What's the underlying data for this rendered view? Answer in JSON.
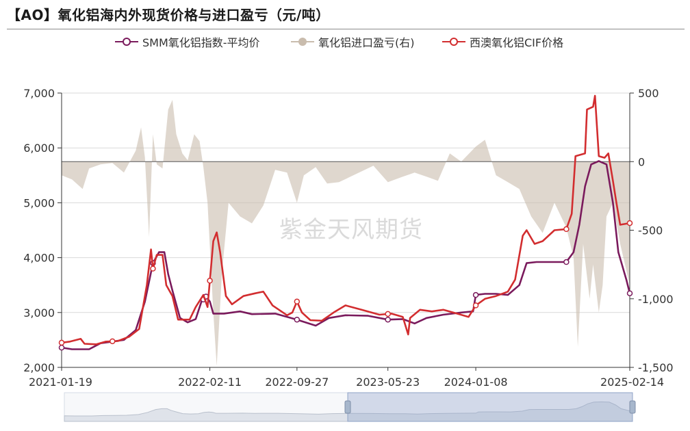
{
  "title": "【AO】氧化铝海内外现货价格与进口盈亏（元/吨）",
  "watermark": "紫金天风期货",
  "legend": [
    {
      "label": "SMM氧化铝指数-平均价",
      "color": "#7a1a5c"
    },
    {
      "label": "氧化铝进口盈亏(右)",
      "color": "#c9bcad"
    },
    {
      "label": "西澳氧化铝CIF价格",
      "color": "#d22d2f"
    }
  ],
  "chart_data": {
    "type": "line",
    "x_ticks": [
      "2021-01-19",
      "2022-02-11",
      "2022-09-27",
      "2023-05-23",
      "2024-01-08",
      "2025-02-14"
    ],
    "y_left": {
      "ticks": [
        "2,000",
        "3,000",
        "4,000",
        "5,000",
        "6,000",
        "7,000"
      ],
      "range": [
        2000,
        7000
      ]
    },
    "y_right": {
      "ticks": [
        "-1,500",
        "-1,000",
        "-500",
        "0",
        "500"
      ],
      "range": [
        -1500,
        500
      ]
    },
    "x_range": [
      "2021-01-19",
      "2025-02-14"
    ],
    "series": [
      {
        "name": "SMM氧化铝指数-平均价",
        "axis": "left",
        "color": "#7a1a5c",
        "points": [
          [
            "2021-01-19",
            2360
          ],
          [
            "2021-02-15",
            2330
          ],
          [
            "2021-04-01",
            2330
          ],
          [
            "2021-05-01",
            2440
          ],
          [
            "2021-06-01",
            2470
          ],
          [
            "2021-07-01",
            2500
          ],
          [
            "2021-08-01",
            2680
          ],
          [
            "2021-08-25",
            3200
          ],
          [
            "2021-09-15",
            3900
          ],
          [
            "2021-10-01",
            4100
          ],
          [
            "2021-10-15",
            4100
          ],
          [
            "2021-10-25",
            3700
          ],
          [
            "2021-11-05",
            3400
          ],
          [
            "2021-11-25",
            2900
          ],
          [
            "2021-12-15",
            2820
          ],
          [
            "2022-01-05",
            2880
          ],
          [
            "2022-01-20",
            3200
          ],
          [
            "2022-02-01",
            3290
          ],
          [
            "2022-02-11",
            3200
          ],
          [
            "2022-02-20",
            2980
          ],
          [
            "2022-03-20",
            2980
          ],
          [
            "2022-05-01",
            3020
          ],
          [
            "2022-06-01",
            2970
          ],
          [
            "2022-08-01",
            2980
          ],
          [
            "2022-09-27",
            2870
          ],
          [
            "2022-11-15",
            2760
          ],
          [
            "2022-12-20",
            2900
          ],
          [
            "2023-02-01",
            2950
          ],
          [
            "2023-04-01",
            2940
          ],
          [
            "2023-05-23",
            2870
          ],
          [
            "2023-07-01",
            2880
          ],
          [
            "2023-08-01",
            2800
          ],
          [
            "2023-09-01",
            2900
          ],
          [
            "2023-10-15",
            2960
          ],
          [
            "2023-12-01",
            3000
          ],
          [
            "2024-01-01",
            3020
          ],
          [
            "2024-01-08",
            3320
          ],
          [
            "2024-02-01",
            3340
          ],
          [
            "2024-03-01",
            3340
          ],
          [
            "2024-04-01",
            3320
          ],
          [
            "2024-05-01",
            3500
          ],
          [
            "2024-05-20",
            3900
          ],
          [
            "2024-06-15",
            3920
          ],
          [
            "2024-08-01",
            3920
          ],
          [
            "2024-09-01",
            3920
          ],
          [
            "2024-09-20",
            4100
          ],
          [
            "2024-10-05",
            4600
          ],
          [
            "2024-10-20",
            5300
          ],
          [
            "2024-11-05",
            5700
          ],
          [
            "2024-11-25",
            5760
          ],
          [
            "2024-12-15",
            5700
          ],
          [
            "2025-01-01",
            5000
          ],
          [
            "2025-01-15",
            4100
          ],
          [
            "2025-02-05",
            3600
          ],
          [
            "2025-02-14",
            3350
          ]
        ]
      },
      {
        "name": "西澳氧化铝CIF价格",
        "axis": "left",
        "color": "#d22d2f",
        "points": [
          [
            "2021-01-19",
            2450
          ],
          [
            "2021-02-10",
            2470
          ],
          [
            "2021-03-10",
            2520
          ],
          [
            "2021-03-20",
            2430
          ],
          [
            "2021-04-20",
            2420
          ],
          [
            "2021-05-15",
            2470
          ],
          [
            "2021-06-15",
            2480
          ],
          [
            "2021-07-15",
            2560
          ],
          [
            "2021-08-10",
            2700
          ],
          [
            "2021-08-30",
            3500
          ],
          [
            "2021-09-10",
            4150
          ],
          [
            "2021-09-15",
            3800
          ],
          [
            "2021-09-25",
            4050
          ],
          [
            "2021-10-10",
            4050
          ],
          [
            "2021-10-20",
            3500
          ],
          [
            "2021-11-05",
            3300
          ],
          [
            "2021-11-20",
            2870
          ],
          [
            "2021-12-20",
            2870
          ],
          [
            "2022-01-05",
            3100
          ],
          [
            "2022-01-25",
            3320
          ],
          [
            "2022-02-05",
            3100
          ],
          [
            "2022-02-20",
            4300
          ],
          [
            "2022-03-01",
            4460
          ],
          [
            "2022-03-10",
            4100
          ],
          [
            "2022-03-25",
            3300
          ],
          [
            "2022-04-10",
            3150
          ],
          [
            "2022-05-10",
            3300
          ],
          [
            "2022-06-10",
            3350
          ],
          [
            "2022-07-01",
            3380
          ],
          [
            "2022-07-25",
            3130
          ],
          [
            "2022-09-01",
            2950
          ],
          [
            "2022-09-15",
            3000
          ],
          [
            "2022-09-27",
            3200
          ],
          [
            "2022-10-10",
            3000
          ],
          [
            "2022-11-01",
            2860
          ],
          [
            "2022-12-01",
            2850
          ],
          [
            "2023-01-01",
            3000
          ],
          [
            "2023-02-01",
            3130
          ],
          [
            "2023-03-15",
            3050
          ],
          [
            "2023-05-01",
            2960
          ],
          [
            "2023-06-01",
            2980
          ],
          [
            "2023-07-01",
            2920
          ],
          [
            "2023-07-15",
            2600
          ],
          [
            "2023-07-20",
            2900
          ],
          [
            "2023-08-15",
            3050
          ],
          [
            "2023-09-15",
            3020
          ],
          [
            "2023-10-15",
            3050
          ],
          [
            "2023-11-20",
            2980
          ],
          [
            "2023-12-20",
            2920
          ],
          [
            "2024-01-08",
            3130
          ],
          [
            "2024-02-01",
            3250
          ],
          [
            "2024-03-01",
            3300
          ],
          [
            "2024-04-01",
            3380
          ],
          [
            "2024-04-20",
            3600
          ],
          [
            "2024-05-10",
            4400
          ],
          [
            "2024-05-20",
            4500
          ],
          [
            "2024-06-10",
            4250
          ],
          [
            "2024-07-01",
            4300
          ],
          [
            "2024-08-01",
            4500
          ],
          [
            "2024-09-01",
            4520
          ],
          [
            "2024-09-15",
            4800
          ],
          [
            "2024-09-25",
            5850
          ],
          [
            "2024-10-20",
            5900
          ],
          [
            "2024-10-25",
            6700
          ],
          [
            "2024-11-10",
            6750
          ],
          [
            "2024-11-15",
            6950
          ],
          [
            "2024-11-25",
            5850
          ],
          [
            "2024-12-10",
            5820
          ],
          [
            "2024-12-20",
            5900
          ],
          [
            "2025-01-01",
            5400
          ],
          [
            "2025-01-10",
            5000
          ],
          [
            "2025-01-20",
            4600
          ],
          [
            "2025-02-14",
            4630
          ]
        ]
      },
      {
        "name": "氧化铝进口盈亏(右)",
        "axis": "right",
        "type": "area",
        "color": "#c9bcad",
        "points": [
          [
            "2021-01-19",
            -100
          ],
          [
            "2021-02-15",
            -130
          ],
          [
            "2021-03-15",
            -200
          ],
          [
            "2021-04-01",
            -50
          ],
          [
            "2021-05-01",
            -20
          ],
          [
            "2021-06-01",
            -10
          ],
          [
            "2021-07-01",
            -80
          ],
          [
            "2021-08-01",
            80
          ],
          [
            "2021-08-15",
            250
          ],
          [
            "2021-08-25",
            30
          ],
          [
            "2021-09-05",
            -550
          ],
          [
            "2021-09-15",
            200
          ],
          [
            "2021-09-25",
            -20
          ],
          [
            "2021-10-10",
            -50
          ],
          [
            "2021-10-25",
            380
          ],
          [
            "2021-11-05",
            450
          ],
          [
            "2021-11-15",
            200
          ],
          [
            "2021-12-01",
            60
          ],
          [
            "2021-12-15",
            10
          ],
          [
            "2022-01-01",
            200
          ],
          [
            "2022-01-15",
            150
          ],
          [
            "2022-01-25",
            -40
          ],
          [
            "2022-02-05",
            -300
          ],
          [
            "2022-02-20",
            -1100
          ],
          [
            "2022-03-01",
            -1490
          ],
          [
            "2022-03-15",
            -800
          ],
          [
            "2022-04-01",
            -300
          ],
          [
            "2022-05-01",
            -400
          ],
          [
            "2022-06-01",
            -450
          ],
          [
            "2022-07-01",
            -320
          ],
          [
            "2022-08-01",
            -60
          ],
          [
            "2022-09-01",
            -80
          ],
          [
            "2022-09-27",
            -300
          ],
          [
            "2022-10-15",
            -100
          ],
          [
            "2022-11-15",
            -40
          ],
          [
            "2022-12-15",
            -160
          ],
          [
            "2023-01-15",
            -150
          ],
          [
            "2023-03-01",
            -90
          ],
          [
            "2023-04-15",
            -30
          ],
          [
            "2023-05-23",
            -150
          ],
          [
            "2023-07-01",
            -110
          ],
          [
            "2023-08-01",
            -80
          ],
          [
            "2023-09-01",
            -110
          ],
          [
            "2023-10-01",
            -140
          ],
          [
            "2023-11-01",
            60
          ],
          [
            "2023-12-01",
            0
          ],
          [
            "2024-01-08",
            110
          ],
          [
            "2024-02-01",
            160
          ],
          [
            "2024-03-01",
            -100
          ],
          [
            "2024-04-01",
            -150
          ],
          [
            "2024-05-01",
            -200
          ],
          [
            "2024-06-01",
            -400
          ],
          [
            "2024-07-01",
            -520
          ],
          [
            "2024-08-01",
            -300
          ],
          [
            "2024-09-01",
            -480
          ],
          [
            "2024-09-20",
            -700
          ],
          [
            "2024-10-01",
            -1350
          ],
          [
            "2024-10-15",
            -600
          ],
          [
            "2024-11-01",
            -1000
          ],
          [
            "2024-11-10",
            -750
          ],
          [
            "2024-11-25",
            -1100
          ],
          [
            "2024-12-05",
            -900
          ],
          [
            "2024-12-15",
            -400
          ],
          [
            "2025-01-01",
            -300
          ],
          [
            "2025-01-20",
            -600
          ],
          [
            "2025-02-14",
            -900
          ]
        ]
      }
    ],
    "marked_points": {
      "SMM氧化铝指数-平均价": [
        "2021-01-19",
        "2021-09-15",
        "2022-01-25",
        "2022-02-01",
        "2022-09-27",
        "2023-05-23",
        "2024-01-08",
        "2024-09-01",
        "2025-02-14"
      ],
      "西澳氧化铝CIF价格": [
        "2021-01-19",
        "2021-06-01",
        "2021-09-15",
        "2022-02-11",
        "2022-09-27",
        "2023-05-23",
        "2024-01-08",
        "2024-09-01",
        "2025-02-14"
      ]
    },
    "grid": true
  }
}
